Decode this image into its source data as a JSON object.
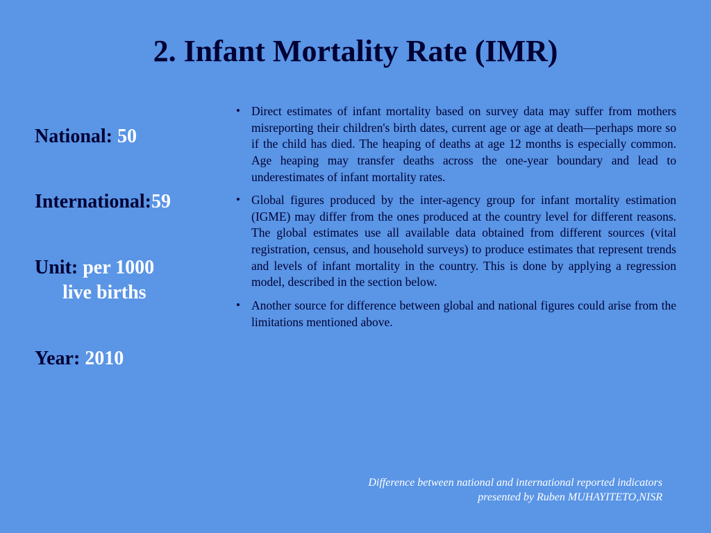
{
  "title": "2. Infant Mortality Rate (IMR)",
  "stats": {
    "national_label": "National: ",
    "national_value": "50",
    "international_label": "International:",
    "international_value": "59",
    "unit_label": "Unit: ",
    "unit_value": "per 1000",
    "unit_value2": "live births",
    "year_label": "Year: ",
    "year_value": "2010"
  },
  "bullets": {
    "b1": "Direct estimates of infant mortality based on survey data may suffer from mothers misreporting their children's birth dates, current age or age at death—perhaps more so if the child has died. The heaping of deaths at age 12 months is especially common. Age heaping may transfer deaths across the one-year boundary and lead to underestimates of infant mortality rates.",
    "b2": "Global figures produced by the inter-agency group for infant mortality estimation (IGME) may differ from the ones produced at the country level for different reasons. The global estimates use all available data obtained from different sources (vital registration, census, and household surveys) to produce estimates that represent trends and levels of infant mortality in the country. This is done by applying a regression model, described in the section below.",
    "b3": "Another source for difference between global and national figures could arise from the limitations mentioned above."
  },
  "footer": {
    "line1": "Difference between national and international reported indicators",
    "line2": "presented by Ruben MUHAYITETO,NISR"
  },
  "colors": {
    "background": "#5a95e6",
    "text_dark": "#000033",
    "text_light": "#ffffff"
  }
}
